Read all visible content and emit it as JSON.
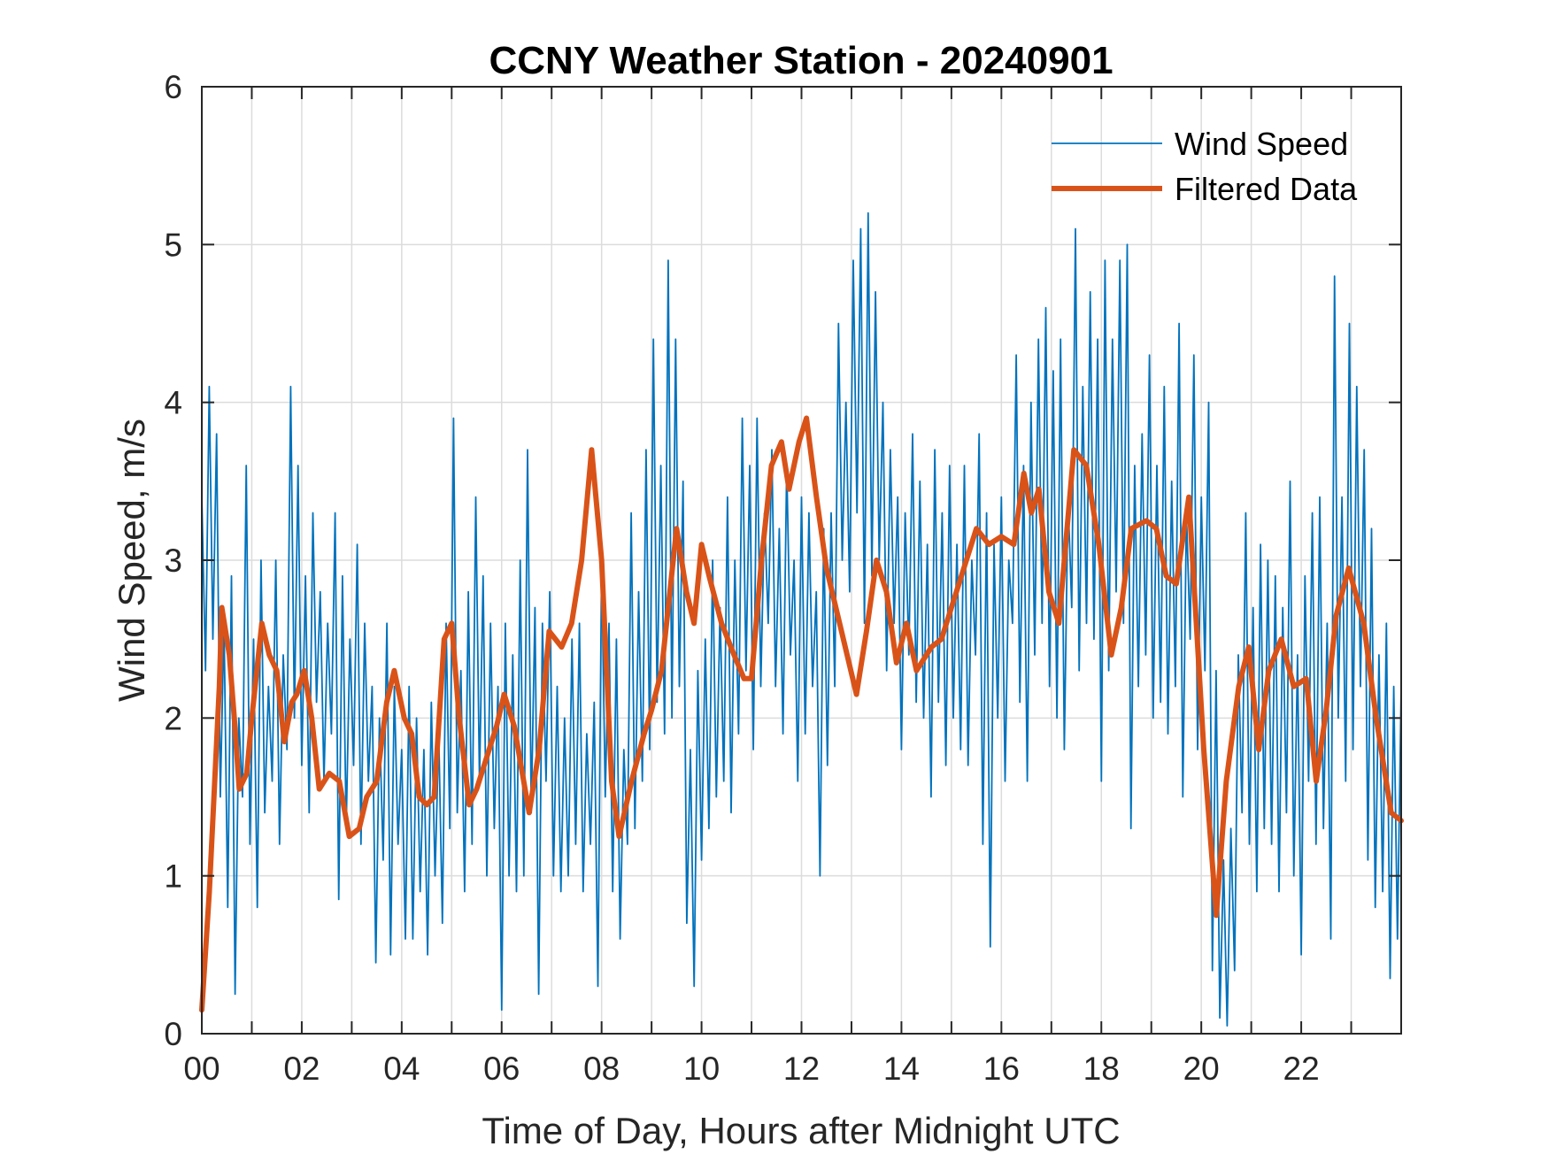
{
  "chart_data": {
    "type": "line",
    "title": "CCNY Weather Station - 20240901",
    "xlabel": "Time of Day, Hours after Midnight UTC",
    "ylabel": "Wind Speed, m/s",
    "xlim": [
      0,
      24
    ],
    "ylim": [
      0,
      6
    ],
    "x_ticks": [
      0,
      2,
      4,
      6,
      8,
      10,
      12,
      14,
      16,
      18,
      20,
      22
    ],
    "x_tick_labels": [
      "00",
      "02",
      "04",
      "06",
      "08",
      "10",
      "12",
      "14",
      "16",
      "18",
      "20",
      "22"
    ],
    "x_minor_grid_step": 1,
    "y_ticks": [
      0,
      1,
      2,
      3,
      4,
      5,
      6
    ],
    "y_tick_labels": [
      "0",
      "1",
      "2",
      "3",
      "4",
      "5",
      "6"
    ],
    "grid": true,
    "legend_position": "top-right",
    "series": [
      {
        "name": "Wind Speed",
        "color": "#0072BD",
        "style": "thin",
        "x_step_hours": 0.0833,
        "values": [
          3.4,
          2.3,
          4.1,
          2.5,
          3.8,
          1.5,
          2.6,
          0.8,
          2.9,
          0.25,
          2.0,
          1.5,
          3.6,
          1.2,
          2.5,
          0.8,
          3.0,
          1.4,
          2.2,
          1.6,
          3.0,
          1.2,
          2.4,
          1.8,
          4.1,
          2.0,
          3.6,
          1.7,
          2.9,
          1.4,
          3.3,
          2.1,
          2.8,
          1.6,
          2.6,
          1.9,
          3.3,
          0.85,
          2.9,
          1.3,
          2.5,
          1.7,
          3.1,
          1.2,
          2.6,
          1.6,
          2.2,
          0.45,
          2.0,
          1.1,
          2.6,
          0.5,
          2.2,
          1.2,
          1.8,
          0.6,
          2.2,
          0.6,
          2.0,
          0.9,
          1.8,
          0.5,
          2.1,
          1.0,
          1.9,
          0.7,
          2.6,
          1.3,
          3.9,
          1.4,
          2.3,
          0.9,
          2.8,
          1.2,
          3.4,
          1.6,
          2.9,
          1.0,
          2.6,
          1.3,
          2.2,
          0.15,
          2.6,
          1.0,
          2.4,
          0.9,
          3.0,
          1.0,
          3.7,
          1.4,
          2.7,
          0.25,
          2.6,
          1.6,
          2.8,
          1.0,
          2.2,
          0.9,
          2.0,
          1.0,
          2.5,
          1.2,
          2.6,
          0.9,
          1.9,
          1.2,
          2.1,
          0.3,
          3.0,
          1.5,
          2.6,
          0.9,
          2.5,
          0.6,
          1.8,
          1.2,
          3.3,
          1.3,
          2.8,
          1.6,
          3.7,
          1.8,
          4.4,
          2.1,
          3.6,
          1.9,
          4.9,
          2.0,
          4.4,
          2.2,
          3.5,
          0.7,
          1.8,
          0.3,
          2.3,
          1.1,
          2.5,
          1.3,
          3.0,
          1.5,
          2.7,
          1.6,
          3.4,
          1.4,
          3.0,
          1.9,
          3.9,
          2.3,
          3.6,
          1.8,
          3.9,
          2.2,
          3.3,
          2.6,
          3.7,
          2.2,
          3.2,
          1.9,
          3.6,
          2.4,
          3.0,
          1.6,
          3.4,
          1.9,
          3.3,
          2.2,
          2.8,
          1.0,
          3.2,
          1.7,
          3.3,
          2.2,
          4.5,
          3.0,
          4.0,
          2.8,
          4.9,
          3.3,
          5.1,
          2.6,
          5.2,
          2.9,
          4.7,
          3.0,
          4.0,
          2.3,
          3.7,
          2.6,
          3.4,
          1.8,
          3.3,
          2.4,
          3.8,
          2.1,
          3.5,
          2.0,
          3.1,
          1.5,
          3.7,
          2.1,
          3.3,
          1.7,
          3.6,
          2.0,
          3.1,
          1.8,
          3.6,
          1.7,
          3.0,
          2.4,
          3.8,
          1.2,
          3.3,
          0.55,
          3.1,
          2.0,
          3.4,
          1.6,
          3.0,
          2.6,
          4.3,
          2.1,
          3.6,
          1.6,
          4.0,
          2.4,
          4.4,
          2.6,
          4.6,
          2.2,
          4.2,
          2.0,
          4.4,
          1.8,
          3.4,
          2.7,
          5.1,
          2.3,
          4.1,
          2.6,
          4.7,
          2.5,
          4.4,
          1.6,
          4.9,
          2.3,
          4.4,
          2.8,
          4.9,
          2.6,
          5.0,
          1.3,
          3.6,
          2.2,
          3.8,
          2.4,
          4.3,
          2.0,
          3.6,
          2.1,
          4.1,
          1.9,
          3.5,
          2.2,
          4.5,
          1.5,
          3.3,
          2.5,
          4.3,
          1.8,
          3.4,
          2.3,
          4.0,
          0.4,
          2.3,
          0.1,
          1.1,
          0.05,
          1.3,
          0.4,
          2.4,
          1.4,
          3.3,
          1.2,
          2.7,
          0.9,
          3.1,
          1.3,
          3.0,
          1.2,
          2.9,
          0.9,
          2.7,
          1.4,
          3.5,
          1.0,
          2.4,
          0.5,
          2.9,
          1.6,
          3.3,
          1.2,
          3.4,
          1.3,
          2.6,
          0.6,
          4.8,
          2.0,
          3.4,
          1.6,
          4.5,
          1.8,
          4.1,
          2.2,
          3.7,
          1.1,
          3.2,
          0.8,
          2.4,
          0.9,
          2.6,
          0.35,
          2.2,
          0.6,
          2.2
        ]
      },
      {
        "name": "Filtered Data",
        "color": "#D95319",
        "style": "thick",
        "x": [
          0,
          0.15,
          0.35,
          0.4,
          0.55,
          0.65,
          0.75,
          0.9,
          1.0,
          1.2,
          1.35,
          1.5,
          1.65,
          1.8,
          1.9,
          2.05,
          2.2,
          2.35,
          2.55,
          2.75,
          2.95,
          3.15,
          3.3,
          3.5,
          3.7,
          3.85,
          4.05,
          4.2,
          4.35,
          4.5,
          4.65,
          4.85,
          5.0,
          5.15,
          5.35,
          5.5,
          5.7,
          5.9,
          6.05,
          6.25,
          6.55,
          6.75,
          6.95,
          7.2,
          7.4,
          7.6,
          7.8,
          8.0,
          8.2,
          8.35,
          8.6,
          8.85,
          9.0,
          9.2,
          9.4,
          9.5,
          9.7,
          9.85,
          10.0,
          10.15,
          10.4,
          10.65,
          10.85,
          11.0,
          11.2,
          11.4,
          11.6,
          11.75,
          11.95,
          12.1,
          12.3,
          12.5,
          12.8,
          13.1,
          13.3,
          13.5,
          13.7,
          13.9,
          14.1,
          14.3,
          14.6,
          14.8,
          15.0,
          15.3,
          15.5,
          15.75,
          16.0,
          16.25,
          16.45,
          16.6,
          16.75,
          16.95,
          17.15,
          17.45,
          17.7,
          17.95,
          18.2,
          18.4,
          18.6,
          18.9,
          19.1,
          19.3,
          19.5,
          19.75,
          20.05,
          20.3,
          20.5,
          20.75,
          20.95,
          21.15,
          21.35,
          21.6,
          21.85,
          22.1,
          22.3,
          22.5,
          22.7,
          22.95,
          23.25,
          23.5,
          23.8,
          24.0
        ],
        "values": [
          0.15,
          0.9,
          2.2,
          2.7,
          2.4,
          2.0,
          1.55,
          1.65,
          2.0,
          2.6,
          2.4,
          2.3,
          1.85,
          2.1,
          2.15,
          2.3,
          2.0,
          1.55,
          1.65,
          1.6,
          1.25,
          1.3,
          1.5,
          1.6,
          2.1,
          2.3,
          2.0,
          1.9,
          1.5,
          1.45,
          1.5,
          2.5,
          2.6,
          2.0,
          1.45,
          1.55,
          1.75,
          1.95,
          2.15,
          1.95,
          1.4,
          1.8,
          2.55,
          2.45,
          2.6,
          3.0,
          3.7,
          3.0,
          1.6,
          1.25,
          1.6,
          1.9,
          2.05,
          2.3,
          2.9,
          3.2,
          2.8,
          2.6,
          3.1,
          2.9,
          2.6,
          2.4,
          2.25,
          2.25,
          3.0,
          3.6,
          3.75,
          3.45,
          3.75,
          3.9,
          3.4,
          2.95,
          2.55,
          2.15,
          2.55,
          3.0,
          2.8,
          2.35,
          2.6,
          2.3,
          2.45,
          2.5,
          2.7,
          3.0,
          3.2,
          3.1,
          3.15,
          3.1,
          3.55,
          3.3,
          3.45,
          2.8,
          2.6,
          3.7,
          3.6,
          3.1,
          2.4,
          2.7,
          3.2,
          3.25,
          3.2,
          2.9,
          2.85,
          3.4,
          1.8,
          0.75,
          1.6,
          2.2,
          2.45,
          1.8,
          2.3,
          2.5,
          2.2,
          2.25,
          1.6,
          2.05,
          2.65,
          2.95,
          2.6,
          2.0,
          1.4,
          1.35
        ]
      }
    ]
  }
}
